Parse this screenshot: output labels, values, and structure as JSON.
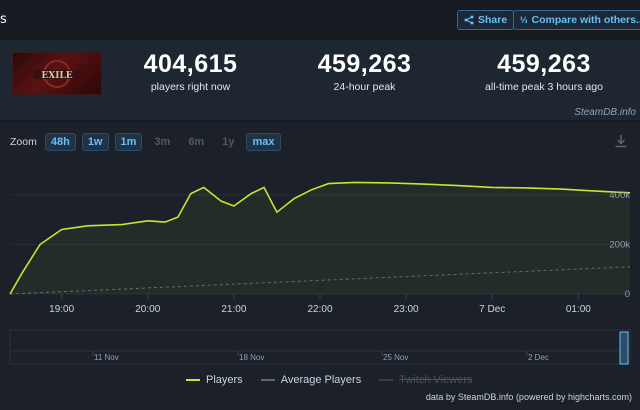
{
  "header": {
    "title_fragment": "s",
    "share_label": "Share",
    "compare_label": "Compare with others..."
  },
  "stats": {
    "current": {
      "value": "404,615",
      "label": "players right now"
    },
    "peak24": {
      "value": "459,263",
      "label": "24-hour peak"
    },
    "alltime": {
      "value": "459,263",
      "label": "all-time peak 3 hours ago"
    },
    "credit": "SteamDB.info"
  },
  "colors": {
    "players": "#c3e830",
    "average": "#5d6772",
    "twitch": "#4a525c",
    "accent": "#67c1f5"
  },
  "zoom": {
    "label": "Zoom",
    "buttons": [
      {
        "label": "48h",
        "active": true
      },
      {
        "label": "1w",
        "active": true
      },
      {
        "label": "1m",
        "active": true
      },
      {
        "label": "3m",
        "active": false
      },
      {
        "label": "6m",
        "active": false
      },
      {
        "label": "1y",
        "active": false
      },
      {
        "label": "max",
        "active": true
      }
    ]
  },
  "legend": {
    "players": "Players",
    "average": "Average Players",
    "twitch": "Twitch Viewers"
  },
  "footer_credit": "data by SteamDB.info (powered by highcharts.com)",
  "chart_data": {
    "type": "line",
    "x_ticks": [
      "19:00",
      "20:00",
      "21:00",
      "22:00",
      "23:00",
      "7 Dec",
      "01:00"
    ],
    "y_ticks": [
      "0",
      "200k",
      "400k"
    ],
    "ylim": [
      0,
      500000
    ],
    "series": [
      {
        "name": "Players",
        "x_hours": [
          18.4,
          18.55,
          18.75,
          19.0,
          19.3,
          19.7,
          20.0,
          20.2,
          20.35,
          20.5,
          20.65,
          20.85,
          21.0,
          21.2,
          21.35,
          21.5,
          21.7,
          21.9,
          22.1,
          22.4,
          22.8,
          23.2,
          23.6,
          24.0,
          24.4,
          24.8,
          25.2,
          25.6
        ],
        "values": [
          0,
          90000,
          200000,
          260000,
          275000,
          280000,
          295000,
          290000,
          310000,
          405000,
          430000,
          375000,
          355000,
          405000,
          430000,
          330000,
          385000,
          420000,
          445000,
          450000,
          448000,
          443000,
          437000,
          430000,
          428000,
          423000,
          415000,
          408000
        ]
      },
      {
        "name": "Average Players",
        "x_hours": [
          18.4,
          25.6
        ],
        "values": [
          0,
          110000
        ]
      }
    ],
    "navigator_labels": [
      "11 Nov",
      "18 Nov",
      "25 Nov",
      "2 Dec"
    ]
  }
}
